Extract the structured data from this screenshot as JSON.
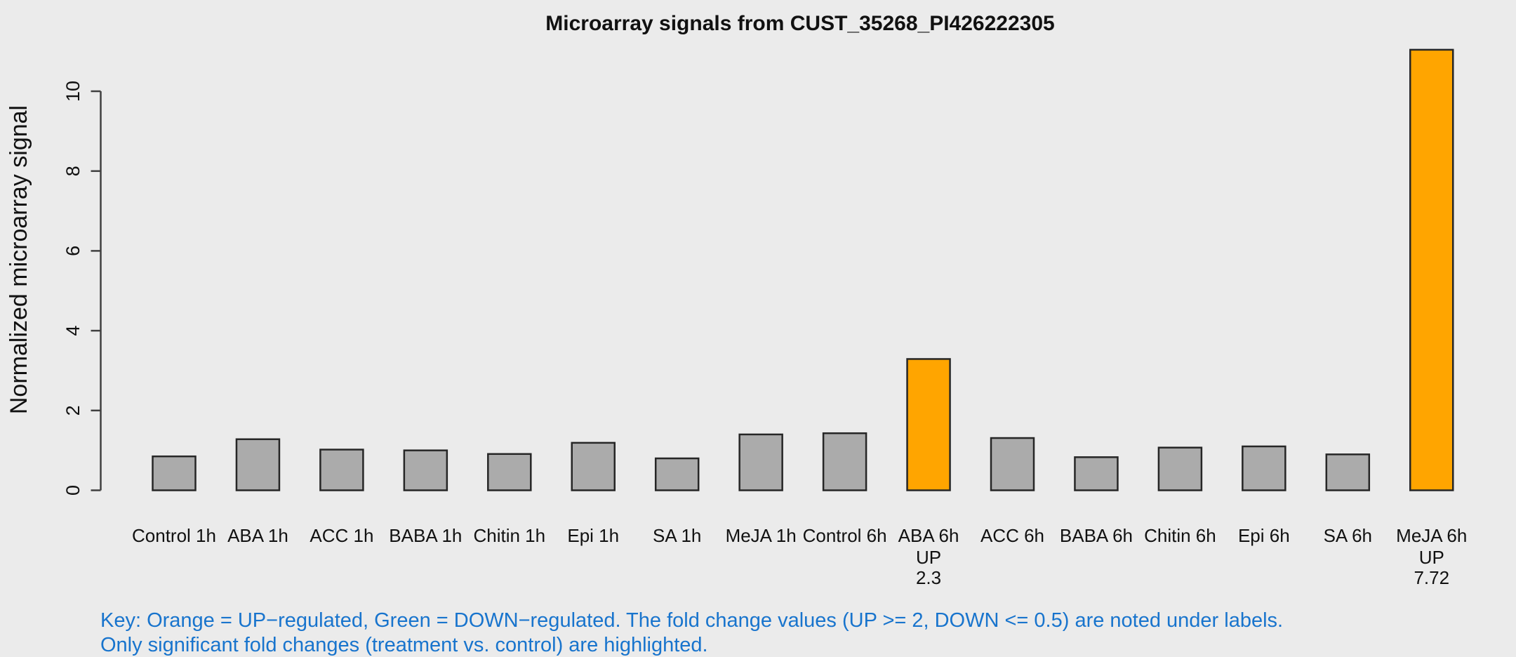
{
  "key": {
    "line1": "Key: Orange = UP−regulated, Green = DOWN−regulated. The fold change values (UP >= 2, DOWN <= 0.5) are noted under labels.",
    "line2": "Only significant fold changes (treatment vs. control) are highlighted.",
    "color": "#1874CD"
  },
  "colors": {
    "background": "#EBEBEB",
    "bar_default": "#ABABAB",
    "bar_up": "#FFA500",
    "bar_down": "#2E8B57",
    "bar_border": "#262626",
    "axis": "#404040",
    "text": "#111111"
  },
  "chart_data": {
    "type": "bar",
    "title": "Microarray signals from CUST_35268_PI426222305",
    "xlabel": "",
    "ylabel": "Normalized microarray signal",
    "ylim": [
      0,
      11.1
    ],
    "yticks": [
      0,
      2,
      4,
      6,
      8,
      10
    ],
    "grid": "off",
    "legend": "none",
    "categories": [
      "Control 1h",
      "ABA 1h",
      "ACC 1h",
      "BABA 1h",
      "Chitin 1h",
      "Epi 1h",
      "SA 1h",
      "MeJA 1h",
      "Control 6h",
      "ABA 6h",
      "ACC 6h",
      "BABA 6h",
      "Chitin 6h",
      "Epi 6h",
      "SA 6h",
      "MeJA 6h"
    ],
    "values": [
      0.85,
      1.28,
      1.02,
      1.0,
      0.91,
      1.19,
      0.8,
      1.4,
      1.43,
      3.29,
      1.31,
      0.83,
      1.07,
      1.1,
      0.9,
      11.04
    ],
    "highlights": [
      null,
      null,
      null,
      null,
      null,
      null,
      null,
      null,
      null,
      "UP",
      null,
      null,
      null,
      null,
      null,
      "UP"
    ],
    "fold_changes": [
      null,
      null,
      null,
      null,
      null,
      null,
      null,
      null,
      null,
      "2.3",
      null,
      null,
      null,
      null,
      null,
      "7.72"
    ]
  }
}
